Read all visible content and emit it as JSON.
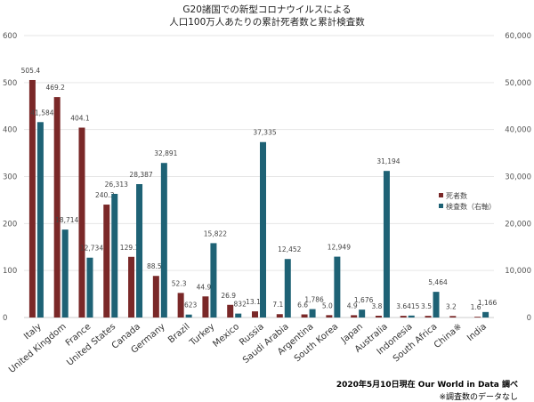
{
  "chart_data": {
    "type": "bar",
    "title": [
      "G20諸国での新型コロナウイルスによる",
      "人口100万人あたりの累計死者数と累計検査数"
    ],
    "categories": [
      "Italy",
      "United Kingdom",
      "France",
      "United States",
      "Canada",
      "Germany",
      "Brazil",
      "Turkey",
      "Mexico",
      "Russia",
      "Saudi Arabia",
      "Argentina",
      "South Korea",
      "Japan",
      "Australia",
      "Indonesia",
      "South Africa",
      "China※",
      "India"
    ],
    "series": [
      {
        "name": "死者数",
        "axis": "left",
        "color": "#7a2828",
        "values": [
          505.4,
          469.2,
          404.1,
          240.3,
          129.1,
          88.5,
          52.3,
          44.9,
          26.9,
          13.1,
          7.1,
          6.6,
          5.0,
          4.9,
          3.8,
          3.6,
          3.5,
          3.2,
          1.6
        ],
        "labels": [
          "505.4",
          "469.2",
          "404.1",
          "240.3",
          "129.1",
          "88.5",
          "52.3",
          "44.9",
          "26.9",
          "13.1",
          "7.1",
          "6.6",
          "5.0",
          "4.9",
          "3.8",
          "3.6",
          "3.5",
          "3.2",
          "1.6"
        ]
      },
      {
        "name": "検査数（右軸）",
        "axis": "right",
        "color": "#1e6275",
        "values": [
          41584,
          18714,
          12734,
          26313,
          28387,
          32891,
          623,
          15822,
          832,
          37335,
          12452,
          1786,
          12949,
          1676,
          31194,
          415,
          5464,
          null,
          1166
        ],
        "labels": [
          "41,584",
          "18,714",
          "12,734",
          "26,313",
          "28,387",
          "32,891",
          "623",
          "15,822",
          "832",
          "37,335",
          "12,452",
          "1,786",
          "12,949",
          "1,676",
          "31,194",
          "415",
          "5,464",
          "",
          "1,166"
        ]
      }
    ],
    "ylim": [
      0,
      600
    ],
    "y2lim": [
      0,
      60000
    ],
    "yticks": [
      "0",
      "100",
      "200",
      "300",
      "400",
      "500",
      "600"
    ],
    "y2ticks": [
      "0",
      "10,000",
      "20,000",
      "30,000",
      "40,000",
      "50,000",
      "60,000"
    ],
    "grid": true,
    "legend": "right"
  },
  "footer": {
    "source": "2020年5月10日現在  Our World in Data 調べ",
    "note": "※調査数のデータなし"
  }
}
